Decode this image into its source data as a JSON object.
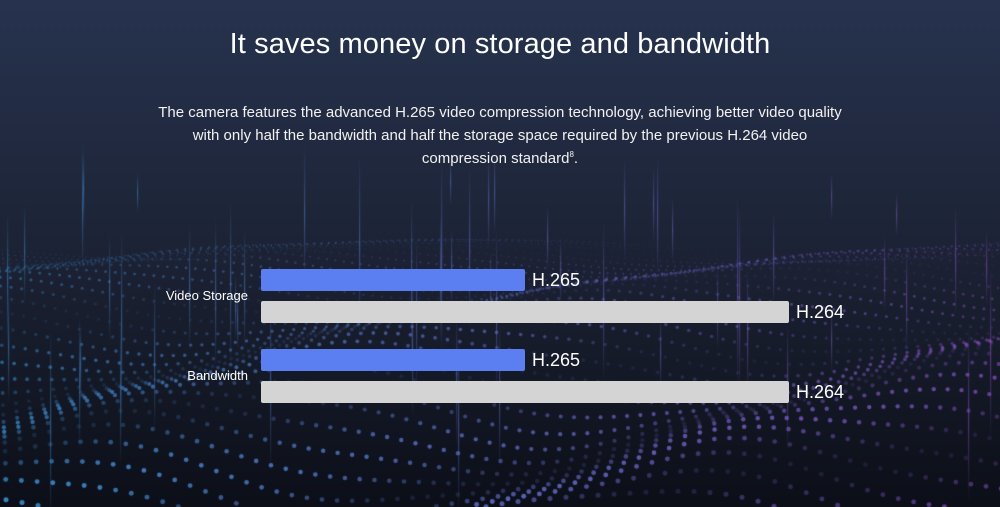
{
  "header": {
    "title": "It saves money on storage and bandwidth",
    "description": "The camera features the advanced H.265 video compression technology, achieving better video quality with only half the bandwidth and half the storage space required by the previous H.264 video compression standard",
    "footnote_mark": "8"
  },
  "chart_data": {
    "type": "bar",
    "orientation": "horizontal",
    "categories": [
      "Video Storage",
      "Bandwidth"
    ],
    "series": [
      {
        "name": "H.265",
        "values": [
          50,
          50
        ],
        "color": "#5b7ef0"
      },
      {
        "name": "H.264",
        "values": [
          100,
          100
        ],
        "color": "#d4d4d4"
      }
    ],
    "xlim": [
      0,
      100
    ],
    "grid": false,
    "legend": "none"
  },
  "colors": {
    "background_top": "#27334f",
    "background_bottom": "#0c0f18",
    "dots_left": "#3a8fd0",
    "dots_right": "#8a4fc4"
  }
}
